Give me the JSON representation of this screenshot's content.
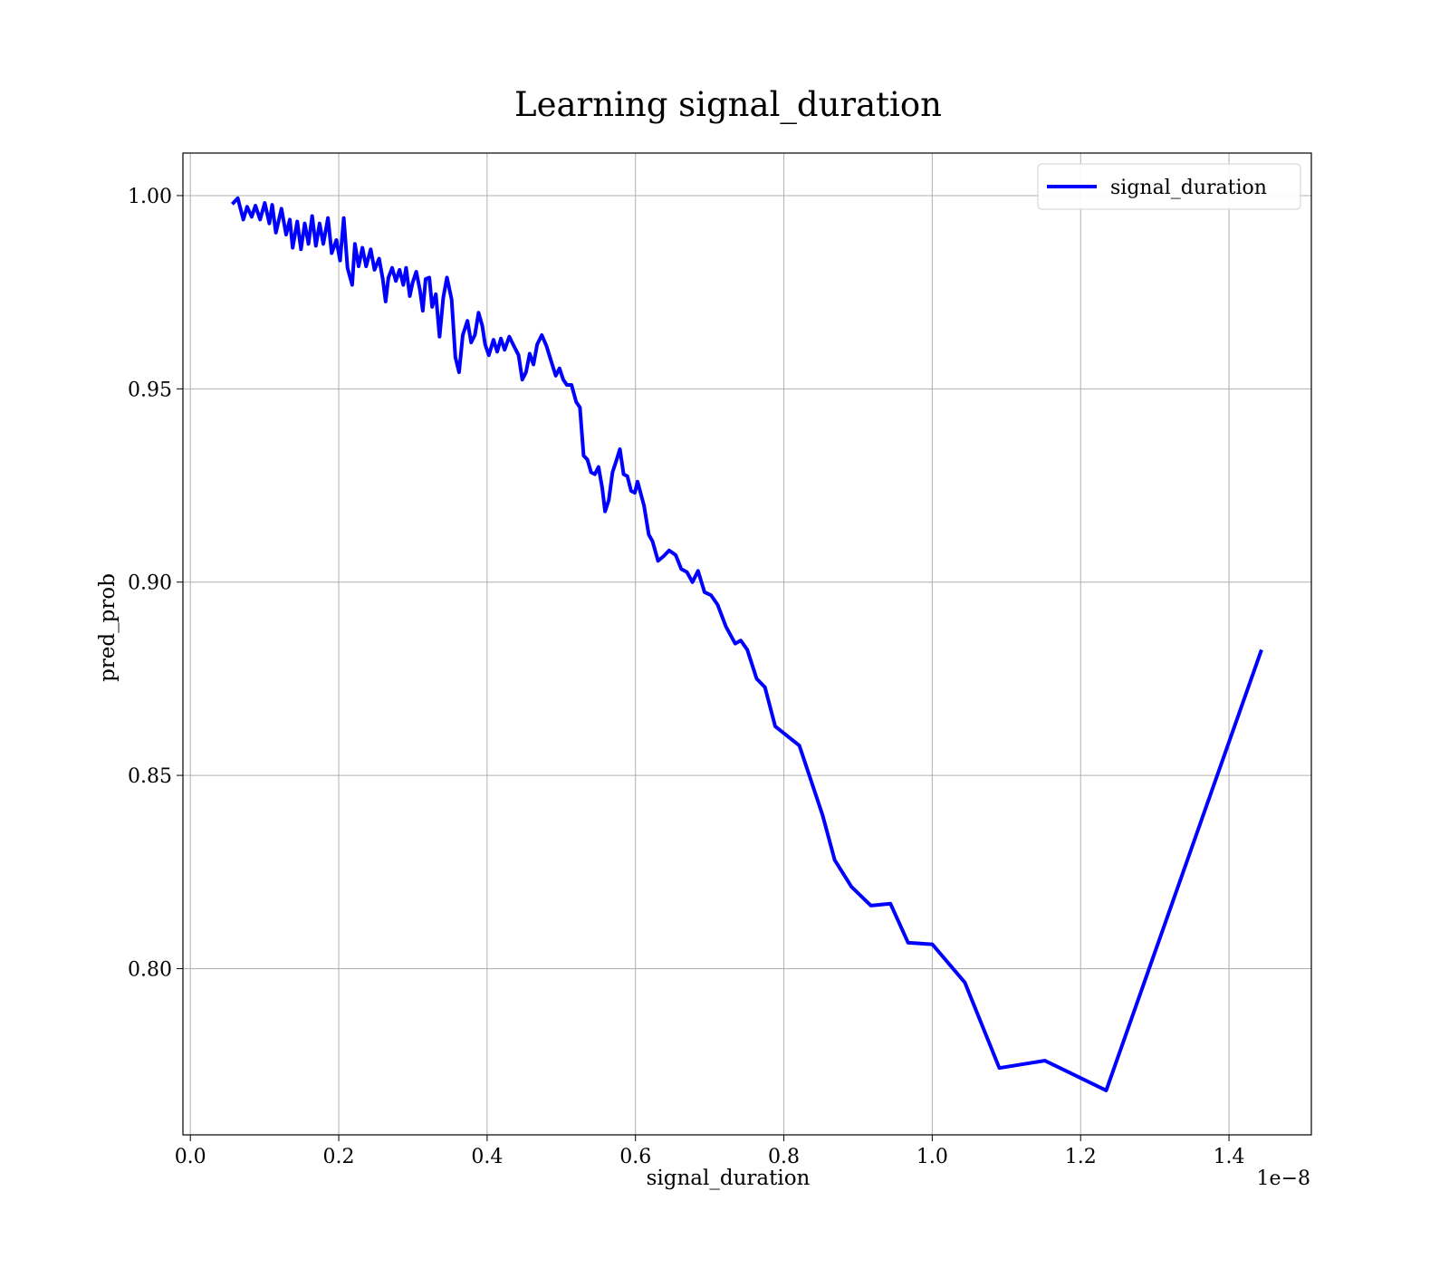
{
  "chart_data": {
    "type": "line",
    "title": "Learning signal_duration",
    "x_label": "signal_duration",
    "y_label": "pred_prob",
    "x_offset_label": "1e−8",
    "xlim": [
      -0.01,
      1.511
    ],
    "ylim": [
      0.757,
      1.011
    ],
    "xticks": [
      {
        "value": 0,
        "label": "0.0"
      },
      0.2,
      0.4,
      0.6,
      0.8,
      {
        "value": 1,
        "label": "1.0"
      },
      1.2,
      1.4
    ],
    "yticks": [
      {
        "value": 0.8,
        "label": "0.80"
      },
      0.85,
      {
        "value": 0.9,
        "label": "0.90"
      },
      0.95,
      {
        "value": 1,
        "label": "1.00"
      }
    ],
    "grid": true,
    "legend": "upper right",
    "x": [
      0.0564,
      0.0639,
      0.0714,
      0.0765,
      0.0827,
      0.0877,
      0.094,
      0.1003,
      0.1065,
      0.1103,
      0.1153,
      0.1228,
      0.1291,
      0.1341,
      0.1379,
      0.1441,
      0.1491,
      0.1542,
      0.1592,
      0.1642,
      0.1692,
      0.1742,
      0.1792,
      0.1855,
      0.1905,
      0.1968,
      0.2018,
      0.2068,
      0.2118,
      0.2181,
      0.2218,
      0.2268,
      0.2319,
      0.2369,
      0.2431,
      0.2482,
      0.2544,
      0.2594,
      0.2632,
      0.267,
      0.272,
      0.277,
      0.282,
      0.287,
      0.2908,
      0.2958,
      0.2995,
      0.3045,
      0.3095,
      0.3133,
      0.3171,
      0.3221,
      0.3259,
      0.3309,
      0.3359,
      0.3409,
      0.3459,
      0.3522,
      0.3572,
      0.3622,
      0.3672,
      0.3735,
      0.3785,
      0.3835,
      0.3885,
      0.3935,
      0.3973,
      0.4023,
      0.4086,
      0.4136,
      0.4186,
      0.4236,
      0.4299,
      0.4361,
      0.4424,
      0.4474,
      0.4524,
      0.4574,
      0.4625,
      0.4675,
      0.4737,
      0.48,
      0.4863,
      0.4925,
      0.4976,
      0.5026,
      0.5076,
      0.5138,
      0.5201,
      0.5251,
      0.5301,
      0.5352,
      0.5402,
      0.5452,
      0.5502,
      0.5552,
      0.559,
      0.564,
      0.569,
      0.574,
      0.579,
      0.584,
      0.589,
      0.5941,
      0.5991,
      0.6028,
      0.6116,
      0.6179,
      0.6229,
      0.6304,
      0.6379,
      0.6454,
      0.6542,
      0.6617,
      0.6693,
      0.6768,
      0.6843,
      0.6931,
      0.7018,
      0.7106,
      0.7219,
      0.7344,
      0.7419,
      0.7507,
      0.7633,
      0.7745,
      0.7883,
      0.8209,
      0.8522,
      0.8685,
      0.8911,
      0.9174,
      0.9437,
      0.9675,
      1.0001,
      1.044,
      1.0904,
      1.1518,
      1.2345,
      1.4438
    ],
    "series": [
      {
        "name": "signal_duration",
        "color": "#0000ff",
        "values": [
          0.9978,
          0.9993,
          0.9938,
          0.9971,
          0.9945,
          0.9974,
          0.9938,
          0.9981,
          0.9928,
          0.9976,
          0.9904,
          0.9966,
          0.9899,
          0.9938,
          0.9865,
          0.9933,
          0.9861,
          0.9928,
          0.9875,
          0.9947,
          0.987,
          0.9928,
          0.9875,
          0.9942,
          0.9851,
          0.9885,
          0.9832,
          0.9942,
          0.9813,
          0.9769,
          0.9875,
          0.9817,
          0.9865,
          0.9817,
          0.9861,
          0.9808,
          0.9837,
          0.9784,
          0.9726,
          0.9788,
          0.9813,
          0.9779,
          0.9808,
          0.9769,
          0.9813,
          0.974,
          0.9774,
          0.9803,
          0.9755,
          0.9702,
          0.9784,
          0.9788,
          0.9712,
          0.9745,
          0.9635,
          0.9736,
          0.9788,
          0.9731,
          0.9582,
          0.9543,
          0.9639,
          0.9676,
          0.962,
          0.9639,
          0.9697,
          0.9663,
          0.9615,
          0.9587,
          0.9627,
          0.9596,
          0.963,
          0.9601,
          0.9635,
          0.9611,
          0.9587,
          0.9524,
          0.9543,
          0.9591,
          0.9563,
          0.9615,
          0.9639,
          0.9611,
          0.9572,
          0.9534,
          0.9553,
          0.9524,
          0.951,
          0.951,
          0.9466,
          0.9452,
          0.9327,
          0.9317,
          0.9284,
          0.9279,
          0.9298,
          0.9243,
          0.9183,
          0.9212,
          0.9284,
          0.9313,
          0.9344,
          0.9279,
          0.9274,
          0.9236,
          0.9231,
          0.926,
          0.9197,
          0.9123,
          0.9106,
          0.9055,
          0.9067,
          0.9082,
          0.907,
          0.9034,
          0.9026,
          0.9,
          0.9029,
          0.8974,
          0.8966,
          0.8942,
          0.8885,
          0.8841,
          0.8849,
          0.8825,
          0.875,
          0.8728,
          0.8627,
          0.8577,
          0.8397,
          0.8281,
          0.8212,
          0.8163,
          0.8168,
          0.8067,
          0.8063,
          0.7964,
          0.7743,
          0.7762,
          0.7685,
          0.8825
        ]
      }
    ]
  }
}
